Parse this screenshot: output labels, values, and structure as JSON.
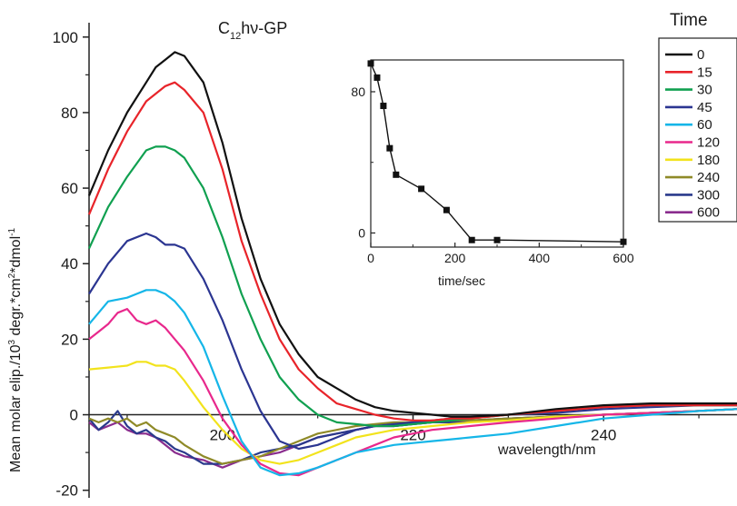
{
  "chart_data": [
    {
      "type": "line",
      "title_main": "C",
      "title_sub": "12",
      "title_rest": "hν-GP",
      "xlabel": "wavelength/nm",
      "ylabel_parts": [
        "Mean molar elip./10",
        "3",
        " degr.*cm",
        "2",
        "*dmol",
        "-1"
      ],
      "xlim": [
        186,
        254
      ],
      "ylim": [
        -22,
        105
      ],
      "xticks": [
        200,
        220,
        240
      ],
      "yticks": [
        -20,
        0,
        20,
        40,
        60,
        80,
        100
      ],
      "grid": false,
      "legend_title": "Time",
      "legend_position": "right",
      "zero_line": true,
      "series": [
        {
          "name": "0",
          "color": "#111111",
          "x": [
            186,
            188,
            190,
            192,
            193,
            194,
            195,
            196,
            198,
            200,
            202,
            204,
            206,
            208,
            210,
            212,
            214,
            216,
            218,
            220,
            222,
            224,
            226,
            230,
            235,
            240,
            245,
            250,
            254
          ],
          "y": [
            58,
            70,
            80,
            88,
            92,
            94,
            96,
            95,
            88,
            72,
            52,
            36,
            24,
            16,
            10,
            7,
            4,
            2,
            1,
            0.5,
            0,
            -0.5,
            -0.5,
            0,
            1.5,
            2.5,
            3,
            3,
            3
          ]
        },
        {
          "name": "15",
          "color": "#e8242a",
          "x": [
            186,
            188,
            190,
            192,
            193,
            194,
            195,
            196,
            198,
            200,
            202,
            204,
            206,
            208,
            210,
            212,
            214,
            216,
            218,
            220,
            222,
            224,
            226,
            230,
            235,
            240,
            245,
            250,
            254
          ],
          "y": [
            53,
            65,
            75,
            83,
            85,
            87,
            88,
            86,
            80,
            65,
            46,
            32,
            20,
            12,
            7,
            3,
            1.5,
            0,
            -1,
            -1.5,
            -1.5,
            -1,
            -1,
            0,
            1,
            2,
            2.5,
            2.5,
            2.5
          ]
        },
        {
          "name": "30",
          "color": "#10a050",
          "x": [
            186,
            188,
            190,
            192,
            193,
            194,
            195,
            196,
            198,
            200,
            202,
            204,
            206,
            208,
            210,
            212,
            214,
            216,
            218,
            220,
            222,
            224,
            226,
            230,
            235,
            240,
            245,
            250,
            254
          ],
          "y": [
            44,
            55,
            63,
            70,
            71,
            71,
            70,
            68,
            60,
            47,
            32,
            20,
            10,
            4,
            0,
            -2,
            -2.5,
            -3,
            -3,
            -2.5,
            -2,
            -1.5,
            -1,
            0,
            1,
            2,
            2.5,
            2.5,
            2.5
          ]
        },
        {
          "name": "45",
          "color": "#2b3591",
          "x": [
            186,
            188,
            190,
            192,
            193,
            194,
            195,
            196,
            198,
            200,
            202,
            204,
            206,
            208,
            210,
            212,
            214,
            216,
            218,
            220,
            222,
            224,
            226,
            230,
            235,
            240,
            245,
            250,
            254
          ],
          "y": [
            32,
            40,
            46,
            48,
            47,
            45,
            45,
            44,
            36,
            25,
            12,
            1,
            -7,
            -9,
            -8,
            -6,
            -4,
            -3,
            -2.5,
            -2,
            -1.5,
            -1,
            -0.5,
            0,
            0.5,
            1.5,
            2,
            2.5,
            2.5
          ]
        },
        {
          "name": "60",
          "color": "#15b6e8",
          "x": [
            186,
            188,
            190,
            191,
            192,
            193,
            194,
            195,
            196,
            198,
            200,
            202,
            204,
            206,
            208,
            210,
            212,
            214,
            216,
            218,
            220,
            222,
            224,
            226,
            230,
            235,
            240,
            245,
            250,
            254
          ],
          "y": [
            24,
            30,
            31,
            32,
            33,
            33,
            32,
            30,
            27,
            18,
            5,
            -7,
            -14,
            -16,
            -15.5,
            -14,
            -12,
            -10,
            -9,
            -8,
            -7.5,
            -7,
            -6.5,
            -6,
            -5,
            -3,
            -1,
            0,
            1,
            1.5
          ]
        },
        {
          "name": "120",
          "color": "#e8288c",
          "x": [
            186,
            187,
            188,
            189,
            190,
            191,
            192,
            193,
            194,
            195,
            196,
            198,
            200,
            202,
            204,
            206,
            208,
            210,
            212,
            214,
            216,
            218,
            220,
            222,
            224,
            226,
            230,
            235,
            240,
            245,
            250,
            254
          ],
          "y": [
            20,
            22,
            24,
            27,
            28,
            25,
            24,
            25,
            23,
            20,
            17,
            9,
            -1,
            -8,
            -13,
            -15.5,
            -16,
            -14,
            -12,
            -10,
            -8,
            -6,
            -5,
            -4,
            -3.5,
            -3,
            -2,
            -1,
            0,
            0.5,
            1,
            1.5
          ]
        },
        {
          "name": "180",
          "color": "#f2e31c",
          "x": [
            186,
            188,
            190,
            191,
            192,
            193,
            194,
            195,
            196,
            198,
            200,
            202,
            204,
            206,
            208,
            210,
            212,
            214,
            216,
            218,
            220,
            222,
            224,
            226,
            230,
            235,
            240,
            245,
            250,
            254
          ],
          "y": [
            12,
            12.5,
            13,
            14,
            14,
            13,
            13,
            12,
            9,
            2,
            -4,
            -9,
            -12,
            -13,
            -12,
            -10,
            -8,
            -6,
            -5,
            -4,
            -3.5,
            -3,
            -2.5,
            -2,
            -1.5,
            -0.5,
            0,
            0.5,
            1,
            1.5
          ]
        },
        {
          "name": "240",
          "color": "#8f8a28",
          "x": [
            186,
            187,
            188,
            189,
            190,
            191,
            192,
            193,
            194,
            195,
            196,
            198,
            200,
            202,
            204,
            206,
            208,
            210,
            212,
            214,
            216,
            218,
            220,
            222,
            224,
            226,
            230,
            235,
            240,
            245,
            250,
            254
          ],
          "y": [
            -1,
            -2,
            -1,
            -2,
            -1,
            -3,
            -2,
            -4,
            -5,
            -6,
            -8,
            -11,
            -13,
            -12,
            -11,
            -9,
            -7,
            -5,
            -4,
            -3,
            -2.5,
            -2,
            -2,
            -2,
            -1.5,
            -1.5,
            -1,
            -0.5,
            0,
            0.5,
            1,
            1.5
          ]
        },
        {
          "name": "300",
          "color": "#2a3a8c",
          "x": [
            186,
            187,
            188,
            189,
            190,
            191,
            192,
            193,
            194,
            195,
            196,
            198,
            200,
            202,
            204,
            206,
            208,
            210,
            212,
            214,
            216,
            218,
            220,
            222,
            224,
            226,
            230,
            235,
            240,
            245,
            250,
            254
          ],
          "y": [
            -1,
            -4,
            -2,
            1,
            -3,
            -5,
            -4,
            -6,
            -7,
            -9,
            -10,
            -13,
            -13,
            -12,
            -10,
            -9,
            -8,
            -6,
            -5,
            -4,
            -3,
            -3,
            -2.5,
            -2,
            -2,
            -1.5,
            -1,
            -0.5,
            0,
            0.5,
            1,
            1.5
          ]
        },
        {
          "name": "600",
          "color": "#8a2c8e",
          "x": [
            186,
            187,
            188,
            189,
            190,
            191,
            192,
            193,
            194,
            195,
            196,
            198,
            200,
            202,
            204,
            206,
            208,
            210,
            212,
            214,
            216,
            218,
            220,
            222,
            224,
            226,
            230,
            235,
            240,
            245,
            250,
            254
          ],
          "y": [
            -2,
            -4,
            -3,
            -2,
            -4,
            -5,
            -5,
            -6,
            -8,
            -10,
            -11,
            -12,
            -14,
            -12,
            -11,
            -10,
            -8,
            -6,
            -5,
            -4,
            -3,
            -3,
            -2.5,
            -2,
            -2,
            -1.5,
            -1,
            -0.5,
            0,
            0.5,
            1,
            1.5
          ]
        }
      ]
    },
    {
      "type": "scatter",
      "subtype": "line-with-square-markers",
      "title": "",
      "xlabel": "time/sec",
      "ylabel": "",
      "xlim": [
        0,
        600
      ],
      "ylim": [
        -8,
        98
      ],
      "xticks": [
        0,
        200,
        400,
        600
      ],
      "yticks": [
        0,
        80
      ],
      "x": [
        0,
        15,
        30,
        45,
        60,
        120,
        180,
        240,
        300,
        600
      ],
      "y": [
        96,
        88,
        72,
        48,
        33,
        25,
        13,
        -4,
        -4,
        -5
      ]
    }
  ]
}
